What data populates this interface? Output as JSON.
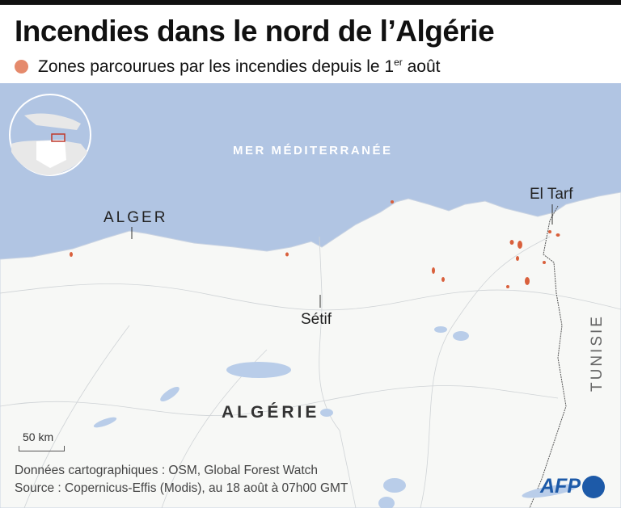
{
  "title": "Incendies dans le nord de l’Algérie",
  "legend": {
    "label": "Zones parcourues par les incendies depuis le 1",
    "sup": "er",
    "suffix": " août",
    "color": "#e58a6c"
  },
  "map": {
    "sea_label": "MER MÉDITERRANÉE",
    "cities": {
      "alger": "ALGER",
      "el_tarf": "El Tarf",
      "setif": "Sétif"
    },
    "country": "ALGÉRIE",
    "neighbor": "TUNISIE",
    "scale": "50 km",
    "colors": {
      "sea": "#b1c5e3",
      "land": "#f7f8f6",
      "fire": "#d9603c",
      "lakes": "#b9cde9"
    }
  },
  "sources": {
    "line1": "Données cartographiques : OSM, Global Forest Watch",
    "line2": "Source : Copernicus-Effis (Modis), au 18 août à 07h00 GMT"
  },
  "logo": "AFP"
}
